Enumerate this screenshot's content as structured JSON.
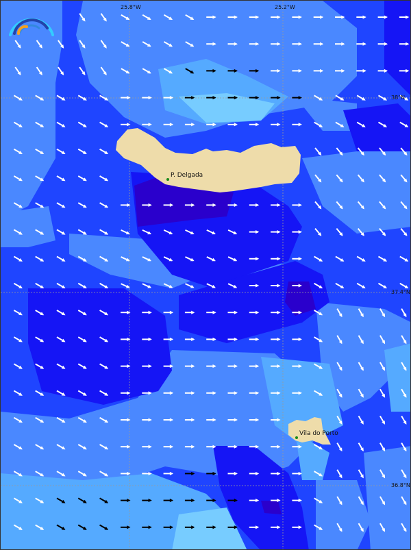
{
  "map": {
    "longitude_labels": [
      "25.8°W",
      "25.2°W"
    ],
    "latitude_labels": [
      "38°N",
      "37.4°N",
      "36.8°N"
    ],
    "places": [
      {
        "name": "P. Delgada"
      },
      {
        "name": "Vila do Porto"
      }
    ],
    "colors": {
      "deepest": "#2a00cc",
      "dark": "#1515f5",
      "mid": "#2255ff",
      "light": "#4a88ff",
      "lighter": "#55aaff",
      "lightest": "#77ccff",
      "land": "#eedcaa",
      "arrow_normal": "#ffffff",
      "arrow_strong": "#000000"
    },
    "logo": "wave-arc-logo"
  }
}
